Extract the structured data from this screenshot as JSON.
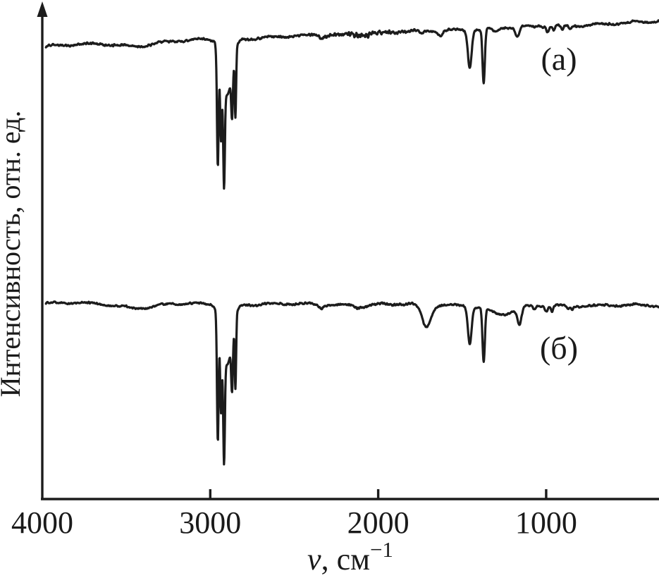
{
  "figure": {
    "background": "#ffffff",
    "line_color": "#1c1c1c",
    "text_color": "#1a1a1a"
  },
  "chart_data": {
    "type": "line",
    "title": "",
    "xlabel": "ν, см⁻¹",
    "xlabel_parts": {
      "symbol": "ν",
      "rest": ", см",
      "superscript": "−1"
    },
    "ylabel": "Интенсивность, отн. ед.",
    "x_axis": {
      "ticks": [
        4000,
        3000,
        2000,
        1000
      ],
      "range": [
        4000,
        330
      ],
      "reversed": true,
      "unit": "см⁻¹"
    },
    "y_axis": {
      "ticks": [],
      "range": [
        0,
        1.06
      ],
      "unit": "отн. ед.",
      "arrow": true
    },
    "legend_position": "none",
    "grid": false,
    "series": [
      {
        "id": "a",
        "label": "(а)",
        "label_anchor": {
          "nu": 924,
          "intensity": 0.923
        },
        "baseline": {
          "start": 0.973,
          "end": 1.026
        },
        "noise_amplitude": 0.0035,
        "noise_seed": 13,
        "noise_bursts": [
          {
            "nu": 2080,
            "sigma": 140,
            "gain": 1.3
          }
        ],
        "peaks": [
          {
            "nu": 3430,
            "depth": 0.006,
            "sigma": 90
          },
          {
            "nu": 2955,
            "depth": 0.25,
            "sigma": 5
          },
          {
            "nu": 2936,
            "depth": 0.16,
            "sigma": 5
          },
          {
            "nu": 2918,
            "depth": 0.22,
            "sigma": 5
          },
          {
            "nu": 2900,
            "depth": 0.12,
            "sigma": 30
          },
          {
            "nu": 2870,
            "depth": 0.1,
            "sigma": 5
          },
          {
            "nu": 2850,
            "depth": 0.14,
            "sigma": 4
          },
          {
            "nu": 2340,
            "depth": 0.006,
            "sigma": 12
          },
          {
            "nu": 1740,
            "depth": 0.008,
            "sigma": 10
          },
          {
            "nu": 1630,
            "depth": 0.01,
            "sigma": 14
          },
          {
            "nu": 1455,
            "depth": 0.082,
            "sigma": 11
          },
          {
            "nu": 1372,
            "depth": 0.117,
            "sigma": 7
          },
          {
            "nu": 1302,
            "depth": 0.008,
            "sigma": 15
          },
          {
            "nu": 1172,
            "depth": 0.022,
            "sigma": 12
          },
          {
            "nu": 991,
            "depth": 0.012,
            "sigma": 7
          },
          {
            "nu": 955,
            "depth": 0.01,
            "sigma": 7
          },
          {
            "nu": 903,
            "depth": 0.01,
            "sigma": 7
          },
          {
            "nu": 858,
            "depth": 0.008,
            "sigma": 6
          }
        ]
      },
      {
        "id": "b",
        "label": "(б)",
        "label_anchor": {
          "nu": 924,
          "intensity": 0.3015
        },
        "baseline": {
          "start": 0.4205,
          "end": 0.4155
        },
        "noise_amplitude": 0.003,
        "noise_seed": 57,
        "noise_bursts": [
          {
            "nu": 1960,
            "sigma": 120,
            "gain": 0.6
          }
        ],
        "peaks": [
          {
            "nu": 3430,
            "depth": 0.008,
            "sigma": 100
          },
          {
            "nu": 2955,
            "depth": 0.27,
            "sigma": 5
          },
          {
            "nu": 2936,
            "depth": 0.17,
            "sigma": 5
          },
          {
            "nu": 2918,
            "depth": 0.235,
            "sigma": 5
          },
          {
            "nu": 2900,
            "depth": 0.13,
            "sigma": 30
          },
          {
            "nu": 2870,
            "depth": 0.11,
            "sigma": 5
          },
          {
            "nu": 2850,
            "depth": 0.15,
            "sigma": 4
          },
          {
            "nu": 2340,
            "depth": 0.008,
            "sigma": 12
          },
          {
            "nu": 2110,
            "depth": 0.005,
            "sigma": 30
          },
          {
            "nu": 1713,
            "depth": 0.048,
            "sigma": 26
          },
          {
            "nu": 1455,
            "depth": 0.082,
            "sigma": 11
          },
          {
            "nu": 1372,
            "depth": 0.115,
            "sigma": 7
          },
          {
            "nu": 1260,
            "depth": 0.02,
            "sigma": 80
          },
          {
            "nu": 1159,
            "depth": 0.035,
            "sigma": 12
          },
          {
            "nu": 1070,
            "depth": 0.008,
            "sigma": 10
          },
          {
            "nu": 998,
            "depth": 0.012,
            "sigma": 8
          },
          {
            "nu": 965,
            "depth": 0.012,
            "sigma": 7
          },
          {
            "nu": 870,
            "depth": 0.008,
            "sigma": 8
          },
          {
            "nu": 845,
            "depth": 0.007,
            "sigma": 6
          }
        ]
      }
    ]
  }
}
